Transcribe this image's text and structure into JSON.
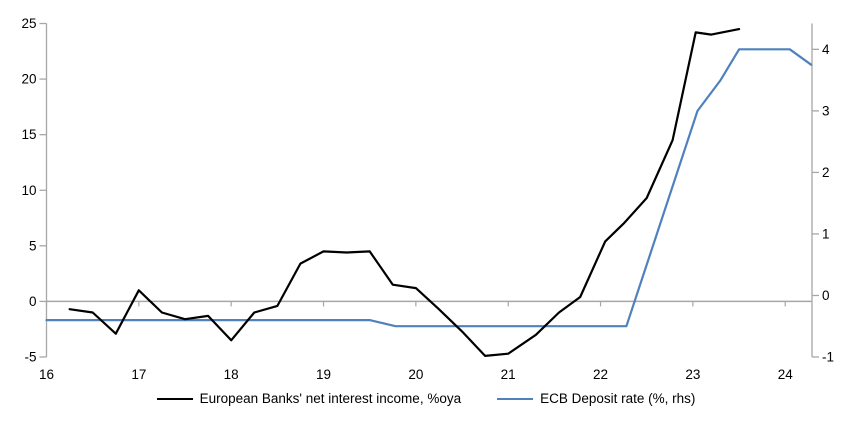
{
  "chart_data": {
    "type": "line",
    "title": "",
    "x_axis": {
      "tick_labels": [
        "16",
        "17",
        "18",
        "19",
        "20",
        "21",
        "22",
        "23",
        "24"
      ],
      "tick_values": [
        16,
        17,
        18,
        19,
        20,
        21,
        22,
        23,
        24
      ],
      "range": [
        16,
        24.29
      ]
    },
    "left_axis": {
      "tick_labels": [
        "25",
        "20",
        "15",
        "10",
        "5",
        "0",
        "-5"
      ],
      "tick_values": [
        25,
        20,
        15,
        10,
        5,
        0,
        -5
      ],
      "range": [
        -5,
        25
      ]
    },
    "right_axis": {
      "tick_labels": [
        "4",
        "3",
        "2",
        "1",
        "0",
        "-1"
      ],
      "tick_values": [
        4,
        3,
        2,
        1,
        0,
        -1
      ],
      "range": [
        -1,
        4.42
      ]
    },
    "grid": "horizontal-zero-line-only",
    "legend_position": "bottom",
    "colors": {
      "axis": "#a6a6a6",
      "zero_line": "#a6a6a6",
      "text": "#000000",
      "series_nii": "#000000",
      "series_ecb": "#4f81bd"
    },
    "series": [
      {
        "name": "European Banks' net interest income, %oya",
        "axis": "left",
        "color": "#000000",
        "points": [
          [
            16.25,
            -0.7
          ],
          [
            16.5,
            -1.0
          ],
          [
            16.75,
            -2.9
          ],
          [
            17.0,
            1.0
          ],
          [
            17.25,
            -1.0
          ],
          [
            17.5,
            -1.6
          ],
          [
            17.75,
            -1.3
          ],
          [
            18.0,
            -3.5
          ],
          [
            18.25,
            -1.0
          ],
          [
            18.5,
            -0.4
          ],
          [
            18.75,
            3.4
          ],
          [
            19.0,
            4.5
          ],
          [
            19.25,
            4.4
          ],
          [
            19.5,
            4.5
          ],
          [
            19.75,
            1.5
          ],
          [
            20.0,
            1.2
          ],
          [
            20.25,
            -0.7
          ],
          [
            20.5,
            -2.7
          ],
          [
            20.75,
            -4.9
          ],
          [
            21.0,
            -4.7
          ],
          [
            21.3,
            -3.0
          ],
          [
            21.55,
            -1.0
          ],
          [
            21.78,
            0.4
          ],
          [
            22.05,
            5.4
          ],
          [
            22.25,
            7.0
          ],
          [
            22.5,
            9.3
          ],
          [
            22.78,
            14.5
          ],
          [
            23.03,
            24.2
          ],
          [
            23.2,
            24.0
          ],
          [
            23.5,
            24.5
          ]
        ]
      },
      {
        "name": "ECB Deposit rate (%, rhs)",
        "axis": "right",
        "color": "#4f81bd",
        "points": [
          [
            16.0,
            -0.4
          ],
          [
            19.5,
            -0.4
          ],
          [
            19.78,
            -0.5
          ],
          [
            22.28,
            -0.5
          ],
          [
            23.05,
            3.0
          ],
          [
            23.3,
            3.5
          ],
          [
            23.5,
            4.0
          ],
          [
            24.05,
            4.0
          ],
          [
            24.28,
            3.75
          ]
        ]
      }
    ]
  }
}
